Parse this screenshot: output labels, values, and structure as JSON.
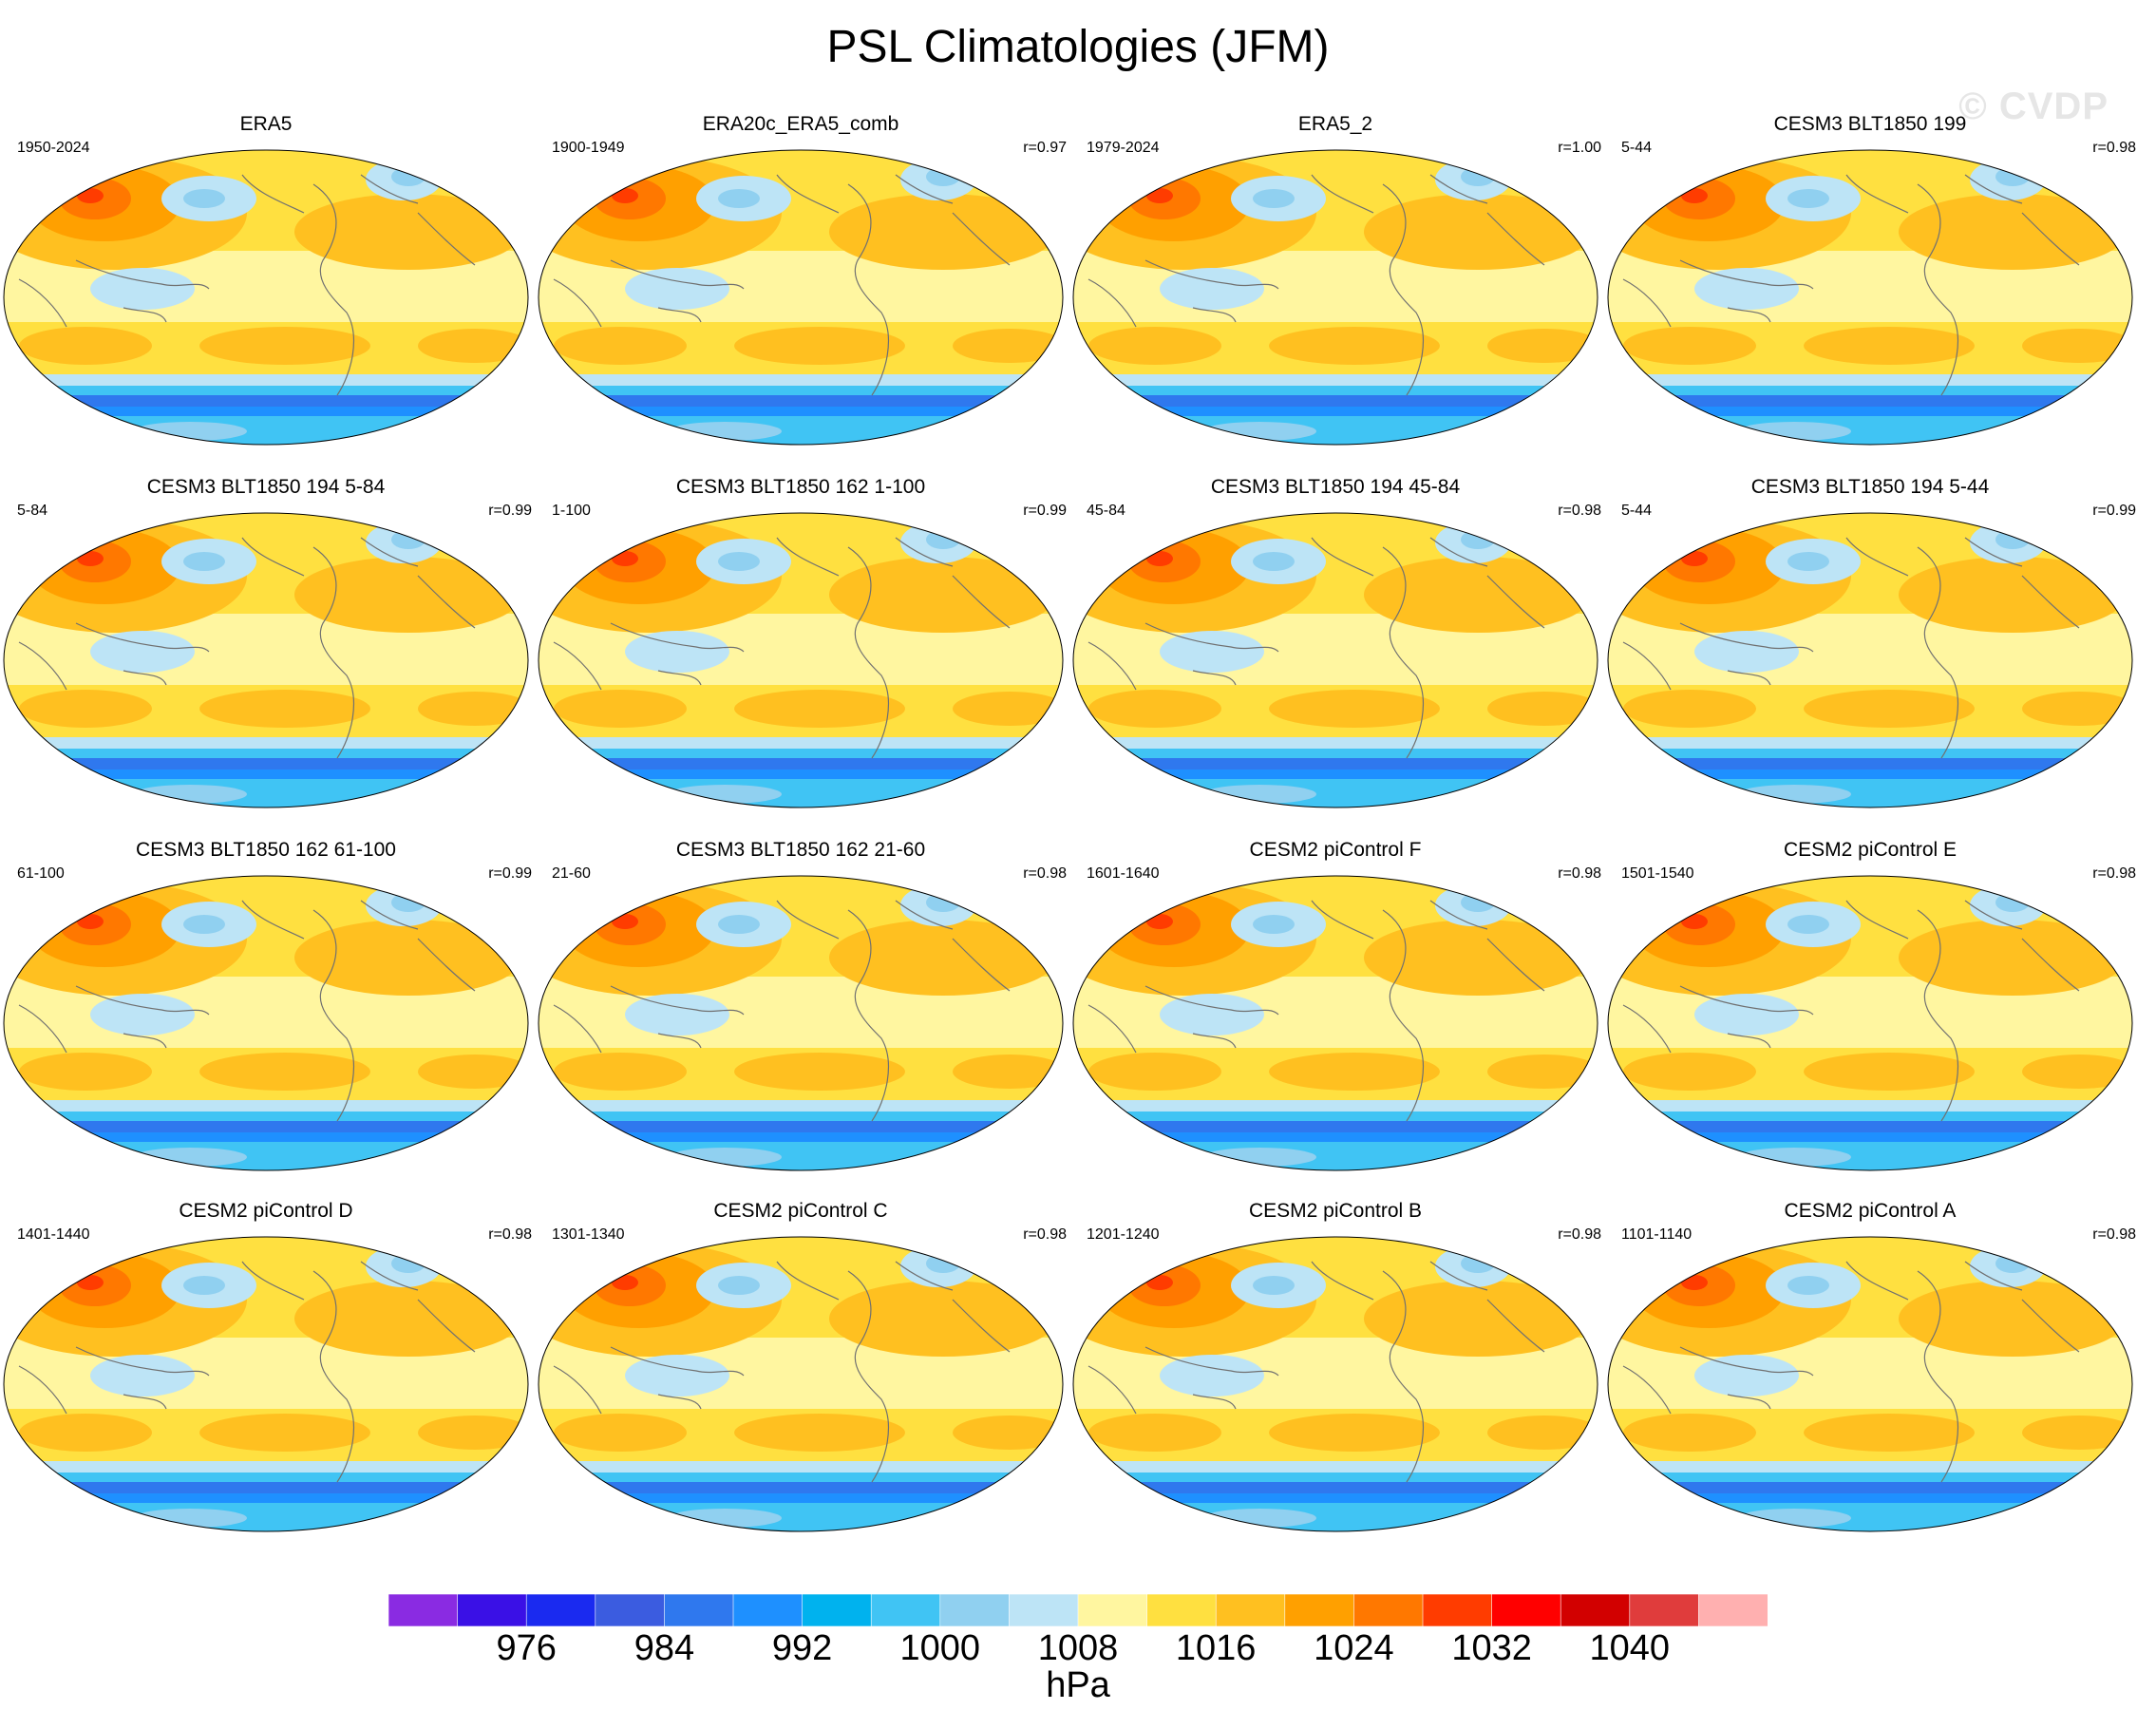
{
  "title": "PSL Climatologies (JFM)",
  "watermark": "© CVDP",
  "panels": [
    {
      "title": "ERA5",
      "years": "1950-2024",
      "r": ""
    },
    {
      "title": "ERA20c_ERA5_comb",
      "years": "1900-1949",
      "r": "r=0.97"
    },
    {
      "title": "ERA5_2",
      "years": "1979-2024",
      "r": "r=1.00"
    },
    {
      "title": "CESM3 BLT1850 199",
      "years": "5-44",
      "r": "r=0.98"
    },
    {
      "title": "CESM3 BLT1850 194 5-84",
      "years": "5-84",
      "r": "r=0.99"
    },
    {
      "title": "CESM3 BLT1850 162 1-100",
      "years": "1-100",
      "r": "r=0.99"
    },
    {
      "title": "CESM3 BLT1850 194 45-84",
      "years": "45-84",
      "r": "r=0.98"
    },
    {
      "title": "CESM3 BLT1850 194 5-44",
      "years": "5-44",
      "r": "r=0.99"
    },
    {
      "title": "CESM3 BLT1850 162 61-100",
      "years": "61-100",
      "r": "r=0.99"
    },
    {
      "title": "CESM3 BLT1850 162 21-60",
      "years": "21-60",
      "r": "r=0.98"
    },
    {
      "title": "CESM2 piControl F",
      "years": "1601-1640",
      "r": "r=0.98"
    },
    {
      "title": "CESM2 piControl E",
      "years": "1501-1540",
      "r": "r=0.98"
    },
    {
      "title": "CESM2 piControl D",
      "years": "1401-1440",
      "r": "r=0.98"
    },
    {
      "title": "CESM2 piControl C",
      "years": "1301-1340",
      "r": "r=0.98"
    },
    {
      "title": "CESM2 piControl B",
      "years": "1201-1240",
      "r": "r=0.98"
    },
    {
      "title": "CESM2 piControl A",
      "years": "1101-1140",
      "r": "r=0.98"
    }
  ],
  "colorbar": {
    "units": "hPa",
    "colors": [
      "#8a2be2",
      "#3a10e6",
      "#1a2af0",
      "#3b5ce0",
      "#2f78ee",
      "#1e90ff",
      "#00b2ee",
      "#40c4f4",
      "#90d0f0",
      "#bde4f6",
      "#fff6a0",
      "#ffe040",
      "#ffc020",
      "#ffa000",
      "#ff7800",
      "#ff3c00",
      "#ff0000",
      "#d20000",
      "#e03c3c",
      "#ffb0b0"
    ],
    "tick_labels": [
      "976",
      "984",
      "992",
      "1000",
      "1008",
      "1016",
      "1024",
      "1032",
      "1040"
    ]
  },
  "style": {
    "ocean_yellow": "#fff6a0",
    "coast": "#707070"
  }
}
